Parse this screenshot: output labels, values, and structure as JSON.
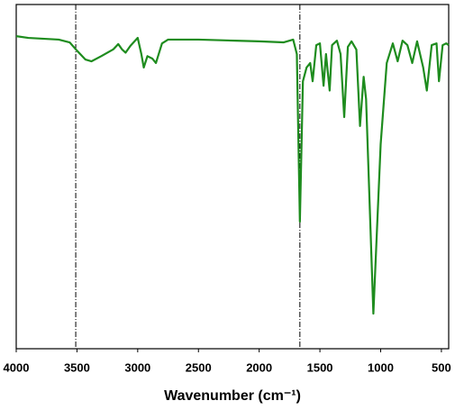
{
  "chart_data": {
    "type": "line",
    "x_label": "Wavenumber (cm⁻¹)",
    "xlim": [
      4000,
      440
    ],
    "xticks": [
      4000,
      3500,
      3000,
      2500,
      2000,
      1500,
      1000,
      500
    ],
    "ylim": [
      0,
      100
    ],
    "reference_lines": [
      3510,
      1665
    ],
    "series": [
      {
        "color": "#1e8c1e",
        "x": [
          4000,
          3900,
          3750,
          3650,
          3560,
          3500,
          3430,
          3380,
          3300,
          3200,
          3160,
          3130,
          3100,
          3060,
          3000,
          2970,
          2950,
          2920,
          2880,
          2850,
          2800,
          2750,
          2500,
          2200,
          2000,
          1800,
          1720,
          1690,
          1665,
          1640,
          1610,
          1580,
          1560,
          1530,
          1500,
          1470,
          1450,
          1420,
          1400,
          1360,
          1330,
          1300,
          1270,
          1240,
          1200,
          1170,
          1140,
          1120,
          1060,
          1000,
          950,
          900,
          860,
          820,
          780,
          740,
          700,
          650,
          620,
          580,
          540,
          520,
          490,
          460,
          440
        ],
        "values": [
          90.8,
          90.3,
          90,
          89.8,
          89,
          86.6,
          84,
          83.5,
          85,
          87,
          88.5,
          87,
          86,
          88,
          90.3,
          85.6,
          81.7,
          85,
          84.3,
          83,
          88.7,
          89.8,
          89.8,
          89.5,
          89.3,
          89,
          89.8,
          85.6,
          36.9,
          77.7,
          81.7,
          83,
          77.7,
          88.2,
          88.7,
          76.4,
          85.6,
          75,
          88.2,
          89.5,
          85.6,
          67.3,
          87.7,
          89.3,
          86.9,
          64.7,
          79,
          72.5,
          10.2,
          59.4,
          83,
          88.7,
          83.5,
          89.5,
          88.2,
          83,
          89.3,
          81.7,
          75,
          88.2,
          88.7,
          77.7,
          88.2,
          88.7,
          88.2
        ]
      }
    ]
  }
}
